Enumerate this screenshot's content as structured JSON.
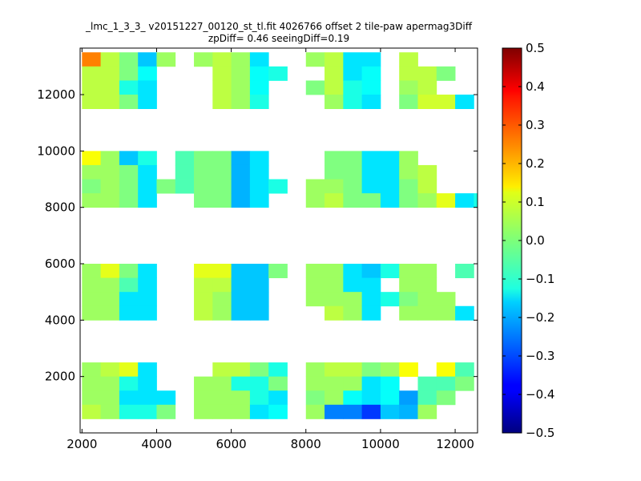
{
  "chart_data": {
    "type": "heatmap",
    "title": "_lmc_1_3_3_ v20151227_00120_st_tl.fit 4026766 offset 2 tile-paw apermag3Diff",
    "subtitle": "zpDiff= 0.46 seeingDiff=0.19",
    "xlabel": "",
    "ylabel": "",
    "xlim": [
      1950,
      12600
    ],
    "ylim": [
      0,
      13650
    ],
    "x_ticks": [
      2000,
      4000,
      6000,
      8000,
      10000,
      12000
    ],
    "y_ticks": [
      2000,
      4000,
      6000,
      8000,
      10000,
      12000
    ],
    "x_tick_labels": [
      "2000",
      "4000",
      "6000",
      "8000",
      "10000",
      "12000"
    ],
    "y_tick_labels": [
      "2000",
      "4000",
      "6000",
      "8000",
      "10000",
      "12000"
    ],
    "grid": false,
    "cell_size": 500,
    "colorbar": {
      "colormap": "jet",
      "vmin": -0.5,
      "vmax": 0.5,
      "ticks": [
        0.5,
        0.4,
        0.3,
        0.2,
        0.1,
        0.0,
        -0.1,
        -0.2,
        -0.3,
        -0.4,
        -0.5
      ],
      "tick_labels": [
        "0.5",
        "0.4",
        "0.3",
        "0.2",
        "0.1",
        "0.0",
        "−0.1",
        "−0.2",
        "−0.3",
        "−0.4",
        "−0.5"
      ]
    },
    "cells": [
      [
        2000,
        13000,
        0.25
      ],
      [
        2000,
        12500,
        0.06
      ],
      [
        2000,
        12000,
        0.06
      ],
      [
        2000,
        11500,
        0.06
      ],
      [
        2500,
        13000,
        0.06
      ],
      [
        2500,
        12500,
        0.06
      ],
      [
        2500,
        12000,
        0.06
      ],
      [
        2500,
        11500,
        0.06
      ],
      [
        3000,
        13000,
        0.0
      ],
      [
        3000,
        12500,
        0.0
      ],
      [
        3000,
        12000,
        -0.1
      ],
      [
        3000,
        11500,
        0.0
      ],
      [
        3500,
        13000,
        -0.18
      ],
      [
        3500,
        12500,
        -0.12
      ],
      [
        3500,
        12000,
        -0.15
      ],
      [
        3500,
        11500,
        -0.15
      ],
      [
        4000,
        13000,
        0.03
      ],
      [
        5000,
        13000,
        0.03
      ],
      [
        5500,
        13000,
        0.06
      ],
      [
        5500,
        12500,
        0.06
      ],
      [
        5500,
        12000,
        0.06
      ],
      [
        5500,
        11500,
        0.06
      ],
      [
        6000,
        13000,
        0.03
      ],
      [
        6000,
        12500,
        0.03
      ],
      [
        6000,
        12000,
        0.03
      ],
      [
        6000,
        11500,
        0.03
      ],
      [
        6500,
        13000,
        -0.15
      ],
      [
        6500,
        12500,
        -0.12
      ],
      [
        6500,
        12000,
        -0.12
      ],
      [
        6500,
        11500,
        -0.1
      ],
      [
        7000,
        12500,
        -0.1
      ],
      [
        8000,
        13000,
        0.03
      ],
      [
        8000,
        12000,
        0.0
      ],
      [
        8500,
        13000,
        0.06
      ],
      [
        8500,
        12500,
        0.06
      ],
      [
        8500,
        12000,
        0.06
      ],
      [
        8500,
        11500,
        0.03
      ],
      [
        9000,
        13000,
        -0.15
      ],
      [
        9000,
        12500,
        -0.15
      ],
      [
        9000,
        12000,
        -0.1
      ],
      [
        9000,
        11500,
        -0.1
      ],
      [
        9500,
        13000,
        -0.15
      ],
      [
        9500,
        12500,
        -0.12
      ],
      [
        9500,
        12000,
        -0.12
      ],
      [
        9500,
        11500,
        -0.15
      ],
      [
        10500,
        13000,
        0.06
      ],
      [
        10500,
        12500,
        0.06
      ],
      [
        10500,
        12000,
        0.03
      ],
      [
        10500,
        11500,
        0.0
      ],
      [
        11000,
        12500,
        0.06
      ],
      [
        11000,
        12000,
        0.06
      ],
      [
        11000,
        11500,
        0.08
      ],
      [
        11500,
        12500,
        0.0
      ],
      [
        11500,
        11500,
        0.08
      ],
      [
        12000,
        11500,
        -0.15
      ],
      [
        2000,
        9500,
        0.12
      ],
      [
        2000,
        9000,
        0.03
      ],
      [
        2000,
        8500,
        0.0
      ],
      [
        2000,
        8000,
        0.03
      ],
      [
        2500,
        9500,
        0.03
      ],
      [
        2500,
        9000,
        0.03
      ],
      [
        2500,
        8500,
        0.03
      ],
      [
        2500,
        8000,
        0.03
      ],
      [
        3000,
        9500,
        -0.18
      ],
      [
        3000,
        9000,
        0.0
      ],
      [
        3000,
        8500,
        0.0
      ],
      [
        3000,
        8000,
        0.0
      ],
      [
        3500,
        9500,
        -0.1
      ],
      [
        3500,
        9000,
        -0.15
      ],
      [
        3500,
        8500,
        -0.15
      ],
      [
        3500,
        8000,
        -0.15
      ],
      [
        4000,
        8500,
        0.0
      ],
      [
        4500,
        9500,
        -0.05
      ],
      [
        4500,
        9000,
        -0.05
      ],
      [
        4500,
        8500,
        -0.05
      ],
      [
        5000,
        9500,
        0.0
      ],
      [
        5000,
        9000,
        0.0
      ],
      [
        5000,
        8500,
        0.0
      ],
      [
        5000,
        8000,
        0.0
      ],
      [
        5500,
        9500,
        0.0
      ],
      [
        5500,
        9000,
        0.0
      ],
      [
        5500,
        8500,
        0.0
      ],
      [
        5500,
        8000,
        0.0
      ],
      [
        6000,
        9500,
        -0.2
      ],
      [
        6000,
        9000,
        -0.2
      ],
      [
        6000,
        8500,
        -0.2
      ],
      [
        6000,
        8000,
        -0.2
      ],
      [
        6500,
        9500,
        -0.15
      ],
      [
        6500,
        9000,
        -0.15
      ],
      [
        6500,
        8500,
        -0.15
      ],
      [
        6500,
        8000,
        -0.15
      ],
      [
        7000,
        8500,
        -0.1
      ],
      [
        8000,
        8500,
        0.03
      ],
      [
        8000,
        8000,
        0.03
      ],
      [
        8500,
        9500,
        0.0
      ],
      [
        8500,
        9000,
        0.0
      ],
      [
        8500,
        8500,
        0.03
      ],
      [
        8500,
        8000,
        0.06
      ],
      [
        9000,
        9500,
        0.0
      ],
      [
        9000,
        9000,
        0.0
      ],
      [
        9000,
        8500,
        0.0
      ],
      [
        9000,
        8000,
        0.0
      ],
      [
        9500,
        9500,
        -0.15
      ],
      [
        9500,
        9000,
        -0.15
      ],
      [
        9500,
        8500,
        -0.15
      ],
      [
        9500,
        8000,
        0.0
      ],
      [
        10000,
        9500,
        -0.15
      ],
      [
        10000,
        9000,
        -0.15
      ],
      [
        10000,
        8500,
        -0.15
      ],
      [
        10000,
        8000,
        -0.15
      ],
      [
        10500,
        9500,
        0.03
      ],
      [
        10500,
        9000,
        0.03
      ],
      [
        10500,
        8500,
        0.0
      ],
      [
        10500,
        8000,
        0.0
      ],
      [
        11000,
        9000,
        0.06
      ],
      [
        11000,
        8500,
        0.06
      ],
      [
        11000,
        8000,
        0.03
      ],
      [
        11500,
        8000,
        0.1
      ],
      [
        12000,
        8000,
        -0.15
      ],
      [
        12500,
        8000,
        -0.1
      ],
      [
        2000,
        5500,
        0.03
      ],
      [
        2000,
        5000,
        0.03
      ],
      [
        2000,
        4500,
        0.03
      ],
      [
        2000,
        4000,
        0.03
      ],
      [
        2500,
        5500,
        0.1
      ],
      [
        2500,
        5000,
        0.03
      ],
      [
        2500,
        4500,
        0.03
      ],
      [
        2500,
        4000,
        0.03
      ],
      [
        3000,
        5500,
        0.0
      ],
      [
        3000,
        5000,
        -0.05
      ],
      [
        3000,
        4500,
        -0.15
      ],
      [
        3000,
        4000,
        -0.15
      ],
      [
        3500,
        5500,
        -0.15
      ],
      [
        3500,
        5000,
        -0.15
      ],
      [
        3500,
        4500,
        -0.15
      ],
      [
        3500,
        4000,
        -0.15
      ],
      [
        5000,
        5500,
        0.1
      ],
      [
        5000,
        5000,
        0.06
      ],
      [
        5000,
        4500,
        0.06
      ],
      [
        5000,
        4000,
        0.06
      ],
      [
        5500,
        5500,
        0.1
      ],
      [
        5500,
        5000,
        0.06
      ],
      [
        5500,
        4500,
        0.03
      ],
      [
        5500,
        4000,
        0.03
      ],
      [
        6000,
        5500,
        -0.18
      ],
      [
        6000,
        5000,
        -0.18
      ],
      [
        6000,
        4500,
        -0.18
      ],
      [
        6000,
        4000,
        -0.18
      ],
      [
        6500,
        5500,
        -0.18
      ],
      [
        6500,
        5000,
        -0.18
      ],
      [
        6500,
        4500,
        -0.18
      ],
      [
        6500,
        4000,
        -0.18
      ],
      [
        7000,
        5500,
        0.0
      ],
      [
        8000,
        5500,
        0.03
      ],
      [
        8000,
        5000,
        0.03
      ],
      [
        8000,
        4500,
        0.03
      ],
      [
        8500,
        5500,
        0.03
      ],
      [
        8500,
        5000,
        0.03
      ],
      [
        8500,
        4500,
        0.03
      ],
      [
        8500,
        4000,
        0.06
      ],
      [
        9000,
        5500,
        -0.15
      ],
      [
        9000,
        5000,
        -0.15
      ],
      [
        9000,
        4500,
        0.03
      ],
      [
        9000,
        4000,
        0.03
      ],
      [
        9500,
        5500,
        -0.18
      ],
      [
        9500,
        5000,
        -0.15
      ],
      [
        9500,
        4500,
        -0.15
      ],
      [
        9500,
        4000,
        -0.15
      ],
      [
        10000,
        5500,
        -0.1
      ],
      [
        10000,
        4500,
        -0.1
      ],
      [
        10500,
        5500,
        0.03
      ],
      [
        10500,
        5000,
        0.03
      ],
      [
        10500,
        4500,
        0.0
      ],
      [
        10500,
        4000,
        0.03
      ],
      [
        11000,
        5500,
        0.03
      ],
      [
        11000,
        5000,
        0.03
      ],
      [
        11000,
        4500,
        0.03
      ],
      [
        11000,
        4000,
        0.03
      ],
      [
        11500,
        4500,
        0.03
      ],
      [
        11500,
        4000,
        0.03
      ],
      [
        12000,
        5500,
        -0.05
      ],
      [
        12000,
        4000,
        -0.15
      ],
      [
        2000,
        2000,
        0.03
      ],
      [
        2000,
        1500,
        0.03
      ],
      [
        2000,
        1000,
        0.03
      ],
      [
        2000,
        500,
        0.06
      ],
      [
        2500,
        2000,
        0.06
      ],
      [
        2500,
        1500,
        0.03
      ],
      [
        2500,
        1000,
        0.03
      ],
      [
        2500,
        500,
        0.03
      ],
      [
        3000,
        2000,
        0.1
      ],
      [
        3000,
        1500,
        -0.1
      ],
      [
        3000,
        1000,
        -0.15
      ],
      [
        3000,
        500,
        -0.1
      ],
      [
        3500,
        2000,
        -0.15
      ],
      [
        3500,
        1500,
        -0.15
      ],
      [
        3500,
        1000,
        -0.15
      ],
      [
        3500,
        500,
        -0.1
      ],
      [
        4000,
        1000,
        -0.15
      ],
      [
        4000,
        500,
        0.0
      ],
      [
        5000,
        1500,
        0.03
      ],
      [
        5000,
        1000,
        0.03
      ],
      [
        5000,
        500,
        0.03
      ],
      [
        5500,
        2000,
        0.06
      ],
      [
        5500,
        1500,
        0.03
      ],
      [
        5500,
        1000,
        0.03
      ],
      [
        5500,
        500,
        0.03
      ],
      [
        6000,
        2000,
        0.06
      ],
      [
        6000,
        1500,
        -0.1
      ],
      [
        6000,
        1000,
        0.03
      ],
      [
        6000,
        500,
        0.03
      ],
      [
        6500,
        2000,
        0.0
      ],
      [
        6500,
        1500,
        -0.1
      ],
      [
        6500,
        1000,
        -0.1
      ],
      [
        6500,
        500,
        -0.15
      ],
      [
        7000,
        2000,
        -0.1
      ],
      [
        7000,
        1500,
        0.0
      ],
      [
        7000,
        1000,
        -0.15
      ],
      [
        7000,
        500,
        -0.12
      ],
      [
        8000,
        2000,
        0.03
      ],
      [
        8000,
        1500,
        0.03
      ],
      [
        8000,
        1000,
        0.0
      ],
      [
        8000,
        500,
        0.03
      ],
      [
        8500,
        2000,
        0.06
      ],
      [
        8500,
        1500,
        0.03
      ],
      [
        8500,
        1000,
        0.03
      ],
      [
        8500,
        500,
        -0.25
      ],
      [
        9000,
        2000,
        0.06
      ],
      [
        9000,
        1500,
        0.03
      ],
      [
        9000,
        1000,
        -0.12
      ],
      [
        9000,
        500,
        -0.25
      ],
      [
        9500,
        2000,
        0.0
      ],
      [
        9500,
        1500,
        -0.15
      ],
      [
        9500,
        1000,
        -0.15
      ],
      [
        9500,
        500,
        -0.32
      ],
      [
        10000,
        2000,
        0.03
      ],
      [
        10000,
        1500,
        -0.12
      ],
      [
        10000,
        1000,
        -0.12
      ],
      [
        10000,
        500,
        -0.18
      ],
      [
        10500,
        2000,
        0.12
      ],
      [
        10500,
        1000,
        -0.22
      ],
      [
        10500,
        500,
        -0.2
      ],
      [
        11000,
        1500,
        -0.05
      ],
      [
        11000,
        1000,
        -0.05
      ],
      [
        11000,
        500,
        0.03
      ],
      [
        11500,
        2000,
        0.12
      ],
      [
        11500,
        1500,
        -0.05
      ],
      [
        11500,
        1000,
        0.0
      ],
      [
        12000,
        2000,
        -0.05
      ],
      [
        12000,
        1500,
        0.0
      ]
    ]
  }
}
